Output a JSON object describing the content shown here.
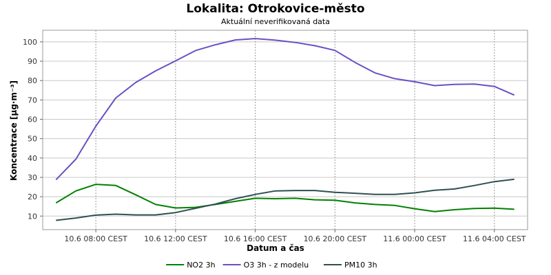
{
  "chart_data": {
    "type": "line",
    "title": "Lokalita: Otrokovice-město",
    "subtitle": "Aktuální neverifikovaná data",
    "xlabel": "Datum a čas",
    "ylabel": "Koncentrace [µg·m⁻³]",
    "ylim": [
      3,
      106
    ],
    "yticks": [
      10,
      20,
      30,
      40,
      50,
      60,
      70,
      80,
      90,
      100
    ],
    "x": [
      "2024-06-10T06:00",
      "2024-06-10T07:00",
      "2024-06-10T08:00",
      "2024-06-10T09:00",
      "2024-06-10T10:00",
      "2024-06-10T11:00",
      "2024-06-10T12:00",
      "2024-06-10T13:00",
      "2024-06-10T14:00",
      "2024-06-10T15:00",
      "2024-06-10T16:00",
      "2024-06-10T17:00",
      "2024-06-10T18:00",
      "2024-06-10T19:00",
      "2024-06-10T20:00",
      "2024-06-10T21:00",
      "2024-06-10T22:00",
      "2024-06-10T23:00",
      "2024-06-11T00:00",
      "2024-06-11T01:00",
      "2024-06-11T02:00",
      "2024-06-11T03:00",
      "2024-06-11T04:00",
      "2024-06-11T05:00"
    ],
    "xlim": [
      "2024-06-10T05:20",
      "2024-06-11T05:40"
    ],
    "xticks": [
      {
        "at": "2024-06-10T08:00",
        "label": "10.6 08:00 CEST"
      },
      {
        "at": "2024-06-10T12:00",
        "label": "10.6 12:00 CEST"
      },
      {
        "at": "2024-06-10T16:00",
        "label": "10.6 16:00 CEST"
      },
      {
        "at": "2024-06-10T20:00",
        "label": "10.6 20:00 CEST"
      },
      {
        "at": "2024-06-11T00:00",
        "label": "11.6 00:00 CEST"
      },
      {
        "at": "2024-06-11T04:00",
        "label": "11.6 04:00 CEST"
      }
    ],
    "grid": true,
    "legend_position": "bottom",
    "series": [
      {
        "name": "NO2 3h",
        "color": "#008000",
        "values": [
          16.8,
          23.0,
          26.4,
          25.8,
          21.0,
          16.0,
          14.2,
          14.5,
          16.0,
          17.6,
          19.2,
          19.0,
          19.2,
          18.4,
          18.2,
          16.8,
          16.0,
          15.5,
          13.8,
          12.3,
          13.3,
          13.9,
          14.1,
          13.5
        ]
      },
      {
        "name": "O3 3h - z modelu",
        "color": "#6a4fc4",
        "values": [
          28.8,
          39.4,
          56.5,
          71.0,
          79.0,
          85.0,
          90.2,
          95.5,
          98.5,
          101.0,
          101.7,
          100.9,
          99.7,
          98.0,
          95.6,
          89.4,
          84.0,
          81.0,
          79.4,
          77.4,
          78.0,
          78.2,
          77.0,
          72.5
        ]
      },
      {
        "name": "PM10 3h",
        "color": "#2f4f4f",
        "values": [
          7.8,
          9.0,
          10.5,
          11.0,
          10.6,
          10.6,
          11.8,
          14.0,
          16.2,
          19.0,
          21.2,
          23.0,
          23.2,
          23.2,
          22.3,
          21.8,
          21.2,
          21.2,
          22.0,
          23.3,
          24.0,
          25.8,
          27.8,
          29.0
        ]
      }
    ]
  }
}
